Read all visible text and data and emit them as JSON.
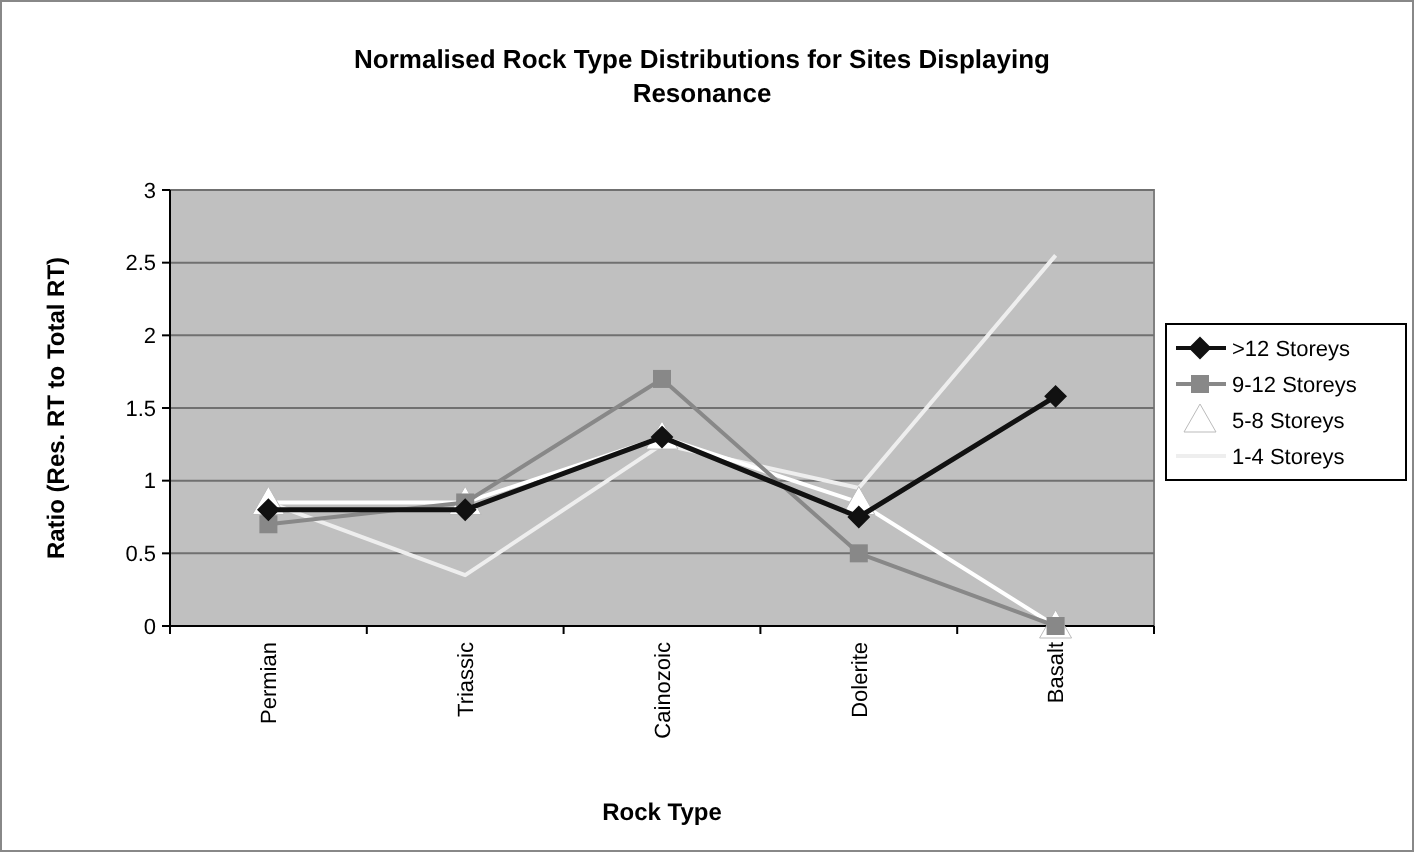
{
  "chart_data": {
    "type": "line",
    "title": "Normalised Rock Type Distributions for Sites Displaying Resonance",
    "xlabel": "Rock Type",
    "ylabel": "Ratio (Res. RT to Total RT)",
    "categories": [
      "Permian",
      "Triassic",
      "Cainozoic",
      "Dolerite",
      "Basalt"
    ],
    "series": [
      {
        "name": ">12 Storeys",
        "color": "#111111",
        "marker": "diamond",
        "values": [
          0.8,
          0.8,
          1.3,
          0.75,
          1.58
        ]
      },
      {
        "name": "9-12 Storeys",
        "color": "#888888",
        "marker": "square",
        "values": [
          0.7,
          0.85,
          1.7,
          0.5,
          0
        ]
      },
      {
        "name": "5-8 Storeys",
        "color": "#ffffff",
        "marker": "triangle",
        "values": [
          0.85,
          0.85,
          1.3,
          0.85,
          0
        ]
      },
      {
        "name": "1-4 Storeys",
        "color": "#eeeeee",
        "marker": "none",
        "values": [
          0.85,
          0.35,
          1.25,
          0.95,
          2.55
        ]
      }
    ],
    "ylim": [
      0,
      3
    ],
    "yticks": [
      0,
      0.5,
      1,
      1.5,
      2,
      2.5,
      3
    ],
    "grid": "y",
    "legend": "right",
    "line_style": "solid"
  }
}
